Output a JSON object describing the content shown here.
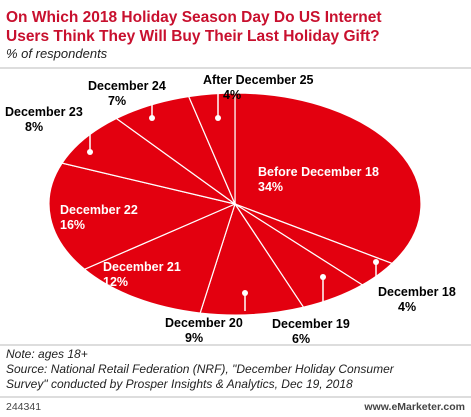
{
  "chart_data": {
    "type": "pie",
    "title": [
      "On Which 2018 Holiday Season Day Do US Internet",
      "Users Think They Will Buy Their Last Holiday Gift?"
    ],
    "subtitle": "% of respondents",
    "categories": [
      "Before December 18",
      "December 18",
      "December 19",
      "December 20",
      "December 21",
      "December 22",
      "December 23",
      "December 24",
      "After December 25"
    ],
    "values": [
      34,
      4,
      6,
      9,
      12,
      16,
      8,
      7,
      4
    ],
    "value_labels": [
      "34%",
      "4%",
      "6%",
      "9%",
      "12%",
      "16%",
      "8%",
      "7%",
      "4%"
    ],
    "color": "#e3000f",
    "note": "Note: ages 18+",
    "source": [
      "Source: National Retail Federation (NRF), \"December Holiday Consumer",
      "Survey\" conducted by Prosper Insights & Analytics, Dec 19, 2018"
    ],
    "chart_id": "244341",
    "brand": "www.eMarketer.com"
  }
}
